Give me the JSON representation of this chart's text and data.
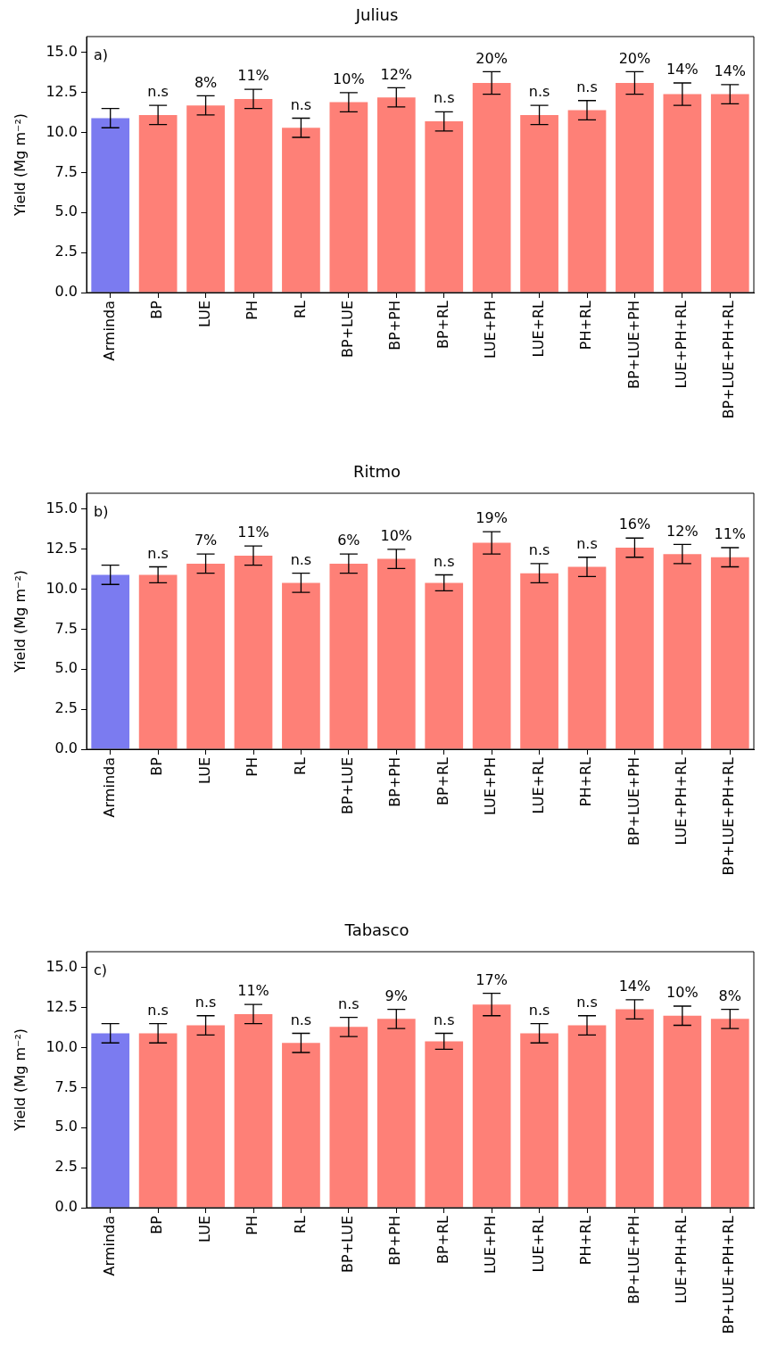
{
  "chart_data": [
    {
      "type": "bar",
      "title": "Julius",
      "ylabel": "Yield (Mg m⁻²)",
      "categories": [
        "Arminda",
        "BP",
        "LUE",
        "PH",
        "RL",
        "BP+LUE",
        "BP+PH",
        "BP+RL",
        "LUE+PH",
        "LUE+RL",
        "PH+RL",
        "BP+LUE+PH",
        "LUE+PH+RL",
        "BP+LUE+PH+RL"
      ],
      "values": [
        10.9,
        11.1,
        11.7,
        12.1,
        10.3,
        11.9,
        12.2,
        10.7,
        13.1,
        11.1,
        11.4,
        13.1,
        12.4,
        12.4
      ],
      "errors": [
        0.6,
        0.6,
        0.6,
        0.6,
        0.6,
        0.6,
        0.6,
        0.6,
        0.7,
        0.6,
        0.6,
        0.7,
        0.7,
        0.6
      ],
      "colors": [
        "#7b7bf0",
        "#fe8077",
        "#fe8077",
        "#fe8077",
        "#fe8077",
        "#fe8077",
        "#fe8077",
        "#fe8077",
        "#fe8077",
        "#fe8077",
        "#fe8077",
        "#fe8077",
        "#fe8077",
        "#fe8077"
      ],
      "ylim": [
        0,
        16
      ],
      "yticks": [
        {
          "value": 0,
          "label": "0.0"
        },
        2.5,
        {
          "value": 5,
          "label": "5.0"
        },
        7.5,
        {
          "value": 10,
          "label": "10.0"
        },
        12.5,
        {
          "value": 15,
          "label": "15.0"
        }
      ],
      "grid": false,
      "legend": false,
      "annotations": [
        "a)",
        {
          "text": "n.s",
          "x": "BP",
          "y": 11.7
        },
        {
          "text": "8%",
          "x": "LUE",
          "y": 12.3
        },
        {
          "text": "11%",
          "x": "PH",
          "y": 12.7
        },
        {
          "text": "n.s",
          "x": "RL",
          "y": 10.9
        },
        {
          "text": "10%",
          "x": "BP+LUE",
          "y": 12.5
        },
        {
          "text": "12%",
          "x": "BP+PH",
          "y": 12.8
        },
        {
          "text": "n.s",
          "x": "BP+RL",
          "y": 11.3
        },
        {
          "text": "20%",
          "x": "LUE+PH",
          "y": 13.8
        },
        {
          "text": "n.s",
          "x": "LUE+RL",
          "y": 11.7
        },
        {
          "text": "n.s",
          "x": "PH+RL",
          "y": 12.0
        },
        {
          "text": "20%",
          "x": "BP+LUE+PH",
          "y": 13.8
        },
        {
          "text": "14%",
          "x": "LUE+PH+RL",
          "y": 13.1
        },
        {
          "text": "14%",
          "x": "BP+LUE+PH+RL",
          "y": 13.0
        }
      ]
    },
    {
      "type": "bar",
      "title": "Ritmo",
      "ylabel": "Yield (Mg m⁻²)",
      "categories": [
        "Arminda",
        "BP",
        "LUE",
        "PH",
        "RL",
        "BP+LUE",
        "BP+PH",
        "BP+RL",
        "LUE+PH",
        "LUE+RL",
        "PH+RL",
        "BP+LUE+PH",
        "LUE+PH+RL",
        "BP+LUE+PH+RL"
      ],
      "values": [
        10.9,
        10.9,
        11.6,
        12.1,
        10.4,
        11.6,
        11.9,
        10.4,
        12.9,
        11.0,
        11.4,
        12.6,
        12.2,
        12.0
      ],
      "errors": [
        0.6,
        0.5,
        0.6,
        0.6,
        0.6,
        0.6,
        0.6,
        0.5,
        0.7,
        0.6,
        0.6,
        0.6,
        0.6,
        0.6
      ],
      "colors": [
        "#7b7bf0",
        "#fe8077",
        "#fe8077",
        "#fe8077",
        "#fe8077",
        "#fe8077",
        "#fe8077",
        "#fe8077",
        "#fe8077",
        "#fe8077",
        "#fe8077",
        "#fe8077",
        "#fe8077",
        "#fe8077"
      ],
      "ylim": [
        0,
        16
      ],
      "yticks": [
        {
          "value": 0,
          "label": "0.0"
        },
        2.5,
        {
          "value": 5,
          "label": "5.0"
        },
        7.5,
        {
          "value": 10,
          "label": "10.0"
        },
        12.5,
        {
          "value": 15,
          "label": "15.0"
        }
      ],
      "grid": false,
      "legend": false,
      "annotations": [
        "b)",
        {
          "text": "n.s",
          "x": "BP",
          "y": 11.4
        },
        {
          "text": "7%",
          "x": "LUE",
          "y": 12.2
        },
        {
          "text": "11%",
          "x": "PH",
          "y": 12.7
        },
        {
          "text": "n.s",
          "x": "RL",
          "y": 11.0
        },
        {
          "text": "6%",
          "x": "BP+LUE",
          "y": 12.2
        },
        {
          "text": "10%",
          "x": "BP+PH",
          "y": 12.5
        },
        {
          "text": "n.s",
          "x": "BP+RL",
          "y": 10.9
        },
        {
          "text": "19%",
          "x": "LUE+PH",
          "y": 13.6
        },
        {
          "text": "n.s",
          "x": "LUE+RL",
          "y": 11.6
        },
        {
          "text": "n.s",
          "x": "PH+RL",
          "y": 12.0
        },
        {
          "text": "16%",
          "x": "BP+LUE+PH",
          "y": 13.2
        },
        {
          "text": "12%",
          "x": "LUE+PH+RL",
          "y": 12.8
        },
        {
          "text": "11%",
          "x": "BP+LUE+PH+RL",
          "y": 12.6
        }
      ]
    },
    {
      "type": "bar",
      "title": "Tabasco",
      "ylabel": "Yield (Mg m⁻²)",
      "categories": [
        "Arminda",
        "BP",
        "LUE",
        "PH",
        "RL",
        "BP+LUE",
        "BP+PH",
        "BP+RL",
        "LUE+PH",
        "LUE+RL",
        "PH+RL",
        "BP+LUE+PH",
        "LUE+PH+RL",
        "BP+LUE+PH+RL"
      ],
      "values": [
        10.9,
        10.9,
        11.4,
        12.1,
        10.3,
        11.3,
        11.8,
        10.4,
        12.7,
        10.9,
        11.4,
        12.4,
        12.0,
        11.8
      ],
      "errors": [
        0.6,
        0.6,
        0.6,
        0.6,
        0.6,
        0.6,
        0.6,
        0.5,
        0.7,
        0.6,
        0.6,
        0.6,
        0.6,
        0.6
      ],
      "colors": [
        "#7b7bf0",
        "#fe8077",
        "#fe8077",
        "#fe8077",
        "#fe8077",
        "#fe8077",
        "#fe8077",
        "#fe8077",
        "#fe8077",
        "#fe8077",
        "#fe8077",
        "#fe8077",
        "#fe8077",
        "#fe8077"
      ],
      "ylim": [
        0,
        16
      ],
      "yticks": [
        {
          "value": 0,
          "label": "0.0"
        },
        2.5,
        {
          "value": 5,
          "label": "5.0"
        },
        7.5,
        {
          "value": 10,
          "label": "10.0"
        },
        12.5,
        {
          "value": 15,
          "label": "15.0"
        }
      ],
      "grid": false,
      "legend": false,
      "annotations": [
        "c)",
        {
          "text": "n.s",
          "x": "BP",
          "y": 11.5
        },
        {
          "text": "n.s",
          "x": "LUE",
          "y": 12.0
        },
        {
          "text": "11%",
          "x": "PH",
          "y": 12.7
        },
        {
          "text": "n.s",
          "x": "RL",
          "y": 10.9
        },
        {
          "text": "n.s",
          "x": "BP+LUE",
          "y": 11.9
        },
        {
          "text": "9%",
          "x": "BP+PH",
          "y": 12.4
        },
        {
          "text": "n.s",
          "x": "BP+RL",
          "y": 10.9
        },
        {
          "text": "17%",
          "x": "LUE+PH",
          "y": 13.4
        },
        {
          "text": "n.s",
          "x": "LUE+RL",
          "y": 11.5
        },
        {
          "text": "n.s",
          "x": "PH+RL",
          "y": 12.0
        },
        {
          "text": "14%",
          "x": "BP+LUE+PH",
          "y": 13.0
        },
        {
          "text": "10%",
          "x": "LUE+PH+RL",
          "y": 12.6
        },
        {
          "text": "8%",
          "x": "BP+LUE+PH+RL",
          "y": 12.4
        }
      ]
    }
  ]
}
